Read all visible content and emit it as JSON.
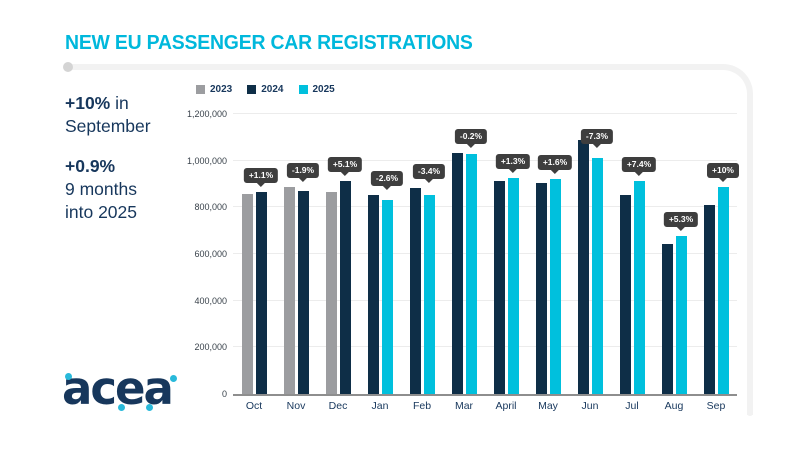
{
  "title": "NEW EU PASSENGER CAR REGISTRATIONS",
  "highlights": {
    "stat1_bold": "+10%",
    "stat1_rest": " in",
    "stat1_line2": "September",
    "stat2_bold": "+0.9%",
    "stat2_line2": "9 months",
    "stat2_line3": "into 2025"
  },
  "logo_text": "acea",
  "colors": {
    "accent_cyan": "#00b8dc",
    "navy": "#17375c",
    "bar_2023": "#9c9da0",
    "bar_2024": "#0e2e47",
    "bar_2025": "#00c0dd",
    "callout_bg": "#3e3e3e"
  },
  "chart_data": {
    "type": "bar",
    "title": "NEW EU PASSENGER CAR REGISTRATIONS",
    "categories": [
      "Oct",
      "Nov",
      "Dec",
      "Jan",
      "Feb",
      "Mar",
      "April",
      "May",
      "Jun",
      "Jul",
      "Aug",
      "Sep"
    ],
    "series": [
      {
        "name": "2023",
        "color": "#9c9da0",
        "values": [
          856000,
          886000,
          867000,
          null,
          null,
          null,
          null,
          null,
          null,
          null,
          null,
          null
        ]
      },
      {
        "name": "2024",
        "color": "#0e2e47",
        "values": [
          866000,
          870000,
          911000,
          853000,
          884000,
          1032000,
          913000,
          905000,
          1090000,
          852000,
          644000,
          808000
        ]
      },
      {
        "name": "2025",
        "color": "#00c0dd",
        "values": [
          null,
          null,
          null,
          831000,
          854000,
          1030000,
          925000,
          920000,
          1011000,
          915000,
          678000,
          889000
        ]
      }
    ],
    "callouts": [
      "+1.1%",
      "-1.9%",
      "+5.1%",
      "-2.6%",
      "-3.4%",
      "-0.2%",
      "+1.3%",
      "+1.6%",
      "-7.3%",
      "+7.4%",
      "+5.3%",
      "+10%"
    ],
    "ylim": [
      0,
      1200000
    ],
    "yticks": [
      "0",
      "200,000",
      "400,000",
      "600,000",
      "800,000",
      "1,000,000",
      "1,200,000"
    ],
    "legend": [
      "2023",
      "2024",
      "2025"
    ],
    "legend_position": "top-left",
    "grid": true,
    "xlabel": "",
    "ylabel": ""
  }
}
